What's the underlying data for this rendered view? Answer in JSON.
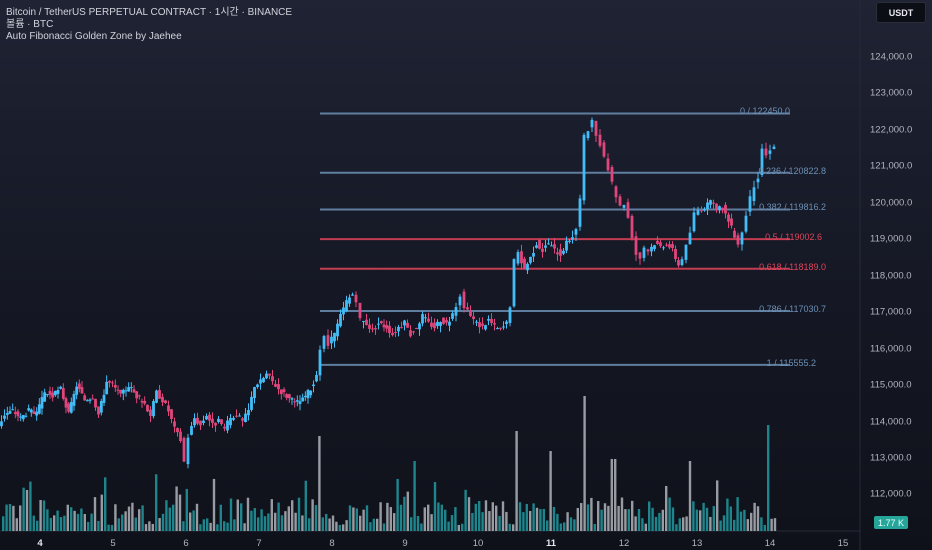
{
  "header": {
    "title": "Bitcoin / TetherUS PERPETUAL CONTRACT · 1시간 · BINANCE",
    "volume_label": "볼륨 · BTC",
    "indicator_label": "Auto Fibonacci Golden Zone by Jaehee"
  },
  "currency_badge": "USDT",
  "volume_badge": "1.77 K",
  "colors": {
    "up": "#42bdf7",
    "down": "#e0457b",
    "fib": "#6d90b5",
    "golden": "#e0445a",
    "vol": "#21a3a8",
    "vol_light": "#c7c9cf"
  },
  "chart_data": {
    "type": "candlestick",
    "y_ticks": [
      "124,000.0",
      "123,000.0",
      "122,000.0",
      "121,000.0",
      "120,000.0",
      "119,000.0",
      "118,000.0",
      "117,000.0",
      "116,000.0",
      "115,000.0",
      "114,000.0",
      "113,000.0",
      "112,000.0"
    ],
    "x_ticks": [
      {
        "label": "4",
        "bold": true
      },
      {
        "label": "5",
        "bold": false
      },
      {
        "label": "6",
        "bold": false
      },
      {
        "label": "7",
        "bold": false
      },
      {
        "label": "8",
        "bold": false
      },
      {
        "label": "9",
        "bold": false
      },
      {
        "label": "10",
        "bold": false
      },
      {
        "label": "11",
        "bold": true
      },
      {
        "label": "12",
        "bold": false
      },
      {
        "label": "13",
        "bold": false
      },
      {
        "label": "14",
        "bold": false
      },
      {
        "label": "15",
        "bold": false
      }
    ],
    "fib_levels": [
      {
        "label": "0 / 122450.0",
        "price": 122450.0,
        "golden": false
      },
      {
        "label": "0.236 / 120822.8",
        "price": 120822.8,
        "golden": false
      },
      {
        "label": "0.382 / 119816.2",
        "price": 119816.2,
        "golden": false
      },
      {
        "label": "0.5 / 119002.6",
        "price": 119002.6,
        "golden": true
      },
      {
        "label": "0.618 / 118189.0",
        "price": 118189.0,
        "golden": true
      },
      {
        "label": "0.786 / 117030.7",
        "price": 117030.7,
        "golden": false
      },
      {
        "label": "1 / 115555.2",
        "price": 115555.2,
        "golden": false
      }
    ],
    "price_path": [
      [
        0,
        113900
      ],
      [
        6,
        114200
      ],
      [
        14,
        114300
      ],
      [
        22,
        114100
      ],
      [
        30,
        114300
      ],
      [
        38,
        114200
      ],
      [
        46,
        114800
      ],
      [
        54,
        114700
      ],
      [
        62,
        114900
      ],
      [
        70,
        114200
      ],
      [
        78,
        115000
      ],
      [
        86,
        114600
      ],
      [
        94,
        114700
      ],
      [
        100,
        114200
      ],
      [
        108,
        115100
      ],
      [
        114,
        115000
      ],
      [
        122,
        114700
      ],
      [
        130,
        115000
      ],
      [
        138,
        114700
      ],
      [
        146,
        114500
      ],
      [
        152,
        114200
      ],
      [
        158,
        114800
      ],
      [
        164,
        114600
      ],
      [
        170,
        114300
      ],
      [
        176,
        113800
      ],
      [
        182,
        113500
      ],
      [
        186,
        112900
      ],
      [
        190,
        113600
      ],
      [
        196,
        114100
      ],
      [
        202,
        113900
      ],
      [
        208,
        114200
      ],
      [
        214,
        113900
      ],
      [
        220,
        114000
      ],
      [
        226,
        113800
      ],
      [
        232,
        114100
      ],
      [
        238,
        114200
      ],
      [
        244,
        114000
      ],
      [
        250,
        114300
      ],
      [
        256,
        115000
      ],
      [
        262,
        115100
      ],
      [
        268,
        115300
      ],
      [
        274,
        115100
      ],
      [
        280,
        114900
      ],
      [
        288,
        114700
      ],
      [
        296,
        114500
      ],
      [
        304,
        114600
      ],
      [
        312,
        114900
      ],
      [
        318,
        115200
      ],
      [
        322,
        116000
      ],
      [
        326,
        116300
      ],
      [
        330,
        116100
      ],
      [
        336,
        116400
      ],
      [
        342,
        116900
      ],
      [
        348,
        117300
      ],
      [
        354,
        117500
      ],
      [
        358,
        117200
      ],
      [
        362,
        116800
      ],
      [
        368,
        116700
      ],
      [
        374,
        116500
      ],
      [
        380,
        116700
      ],
      [
        388,
        116600
      ],
      [
        394,
        116400
      ],
      [
        400,
        116600
      ],
      [
        406,
        116700
      ],
      [
        412,
        116400
      ],
      [
        418,
        116600
      ],
      [
        424,
        116900
      ],
      [
        430,
        116700
      ],
      [
        436,
        116600
      ],
      [
        442,
        116800
      ],
      [
        448,
        116700
      ],
      [
        454,
        116900
      ],
      [
        458,
        117200
      ],
      [
        462,
        117500
      ],
      [
        466,
        117100
      ],
      [
        472,
        116900
      ],
      [
        478,
        116700
      ],
      [
        484,
        116600
      ],
      [
        490,
        116800
      ],
      [
        496,
        116600
      ],
      [
        502,
        116500
      ],
      [
        508,
        116700
      ],
      [
        512,
        117200
      ],
      [
        516,
        118400
      ],
      [
        520,
        118600
      ],
      [
        526,
        118200
      ],
      [
        532,
        118500
      ],
      [
        538,
        118900
      ],
      [
        544,
        118700
      ],
      [
        550,
        118900
      ],
      [
        556,
        118700
      ],
      [
        562,
        118600
      ],
      [
        568,
        118900
      ],
      [
        574,
        119100
      ],
      [
        578,
        119300
      ],
      [
        582,
        120100
      ],
      [
        586,
        121800
      ],
      [
        590,
        122000
      ],
      [
        594,
        122200
      ],
      [
        598,
        121800
      ],
      [
        602,
        121600
      ],
      [
        606,
        121200
      ],
      [
        610,
        120900
      ],
      [
        614,
        120500
      ],
      [
        618,
        120200
      ],
      [
        622,
        119900
      ],
      [
        626,
        120000
      ],
      [
        630,
        119600
      ],
      [
        634,
        119100
      ],
      [
        638,
        118600
      ],
      [
        642,
        118500
      ],
      [
        646,
        118800
      ],
      [
        650,
        118700
      ],
      [
        656,
        118900
      ],
      [
        662,
        118800
      ],
      [
        668,
        118900
      ],
      [
        674,
        118700
      ],
      [
        680,
        118300
      ],
      [
        684,
        118500
      ],
      [
        688,
        118800
      ],
      [
        692,
        119200
      ],
      [
        696,
        119700
      ],
      [
        700,
        119800
      ],
      [
        706,
        119900
      ],
      [
        712,
        120000
      ],
      [
        718,
        119800
      ],
      [
        724,
        119900
      ],
      [
        730,
        119500
      ],
      [
        736,
        119100
      ],
      [
        740,
        118900
      ],
      [
        744,
        119200
      ],
      [
        748,
        119700
      ],
      [
        752,
        120100
      ],
      [
        756,
        120500
      ],
      [
        760,
        120700
      ],
      [
        764,
        121500
      ],
      [
        768,
        121300
      ],
      [
        772,
        121500
      ],
      [
        776,
        121600
      ]
    ],
    "volume_x_range": [
      0,
      776
    ],
    "volume_seed": 7
  }
}
